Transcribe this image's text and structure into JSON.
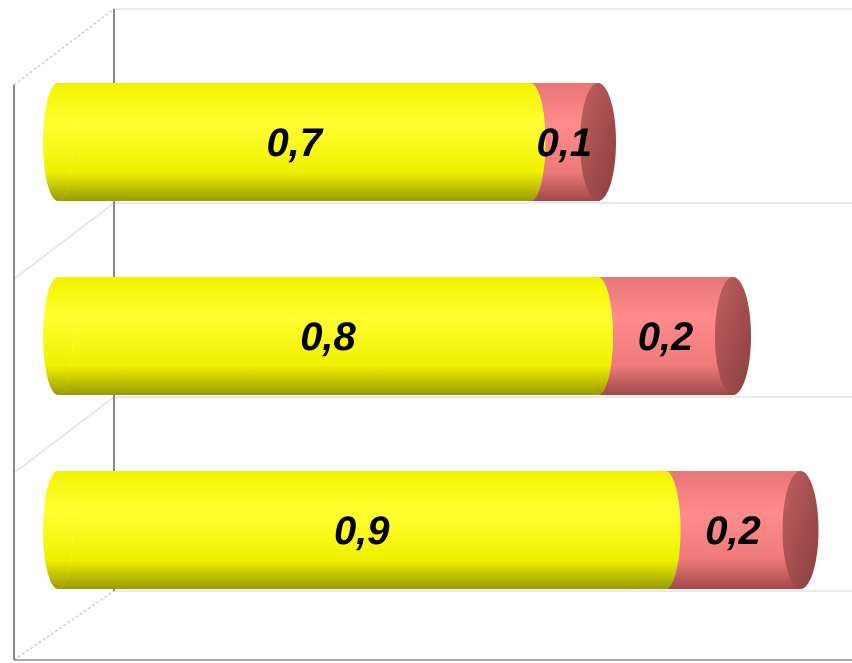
{
  "chart_data": {
    "type": "bar",
    "orientation": "horizontal",
    "stacked": true,
    "style": "3d-cylinder",
    "categories": [
      "",
      "",
      ""
    ],
    "series": [
      {
        "values": [
          0.7,
          0.8,
          0.9
        ],
        "labels": [
          "0,7",
          "0,8",
          "0,9"
        ],
        "color": "#ffff00"
      },
      {
        "values": [
          0.1,
          0.2,
          0.2
        ],
        "labels": [
          "0,1",
          "0,2",
          "0,2"
        ],
        "color": "#f08080"
      }
    ],
    "xlim": [
      0,
      1.15
    ],
    "title": "",
    "xlabel": "",
    "ylabel": "",
    "grid": true,
    "legend": "none",
    "axis_color": "#808080"
  }
}
